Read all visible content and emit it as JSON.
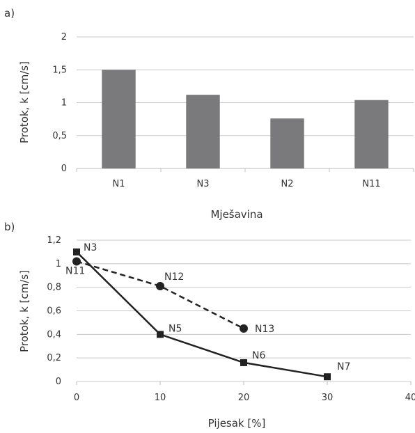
{
  "chart_data": [
    {
      "panel": "a)",
      "type": "bar",
      "title": "",
      "xlabel": "Mješavina",
      "ylabel": "Protok, k [cm/s]",
      "categories": [
        "N1",
        "N3",
        "N2",
        "N11"
      ],
      "values": [
        1.5,
        1.12,
        0.76,
        1.04
      ],
      "ylim": [
        0,
        2
      ],
      "yticks": [
        0,
        0.5,
        1,
        1.5,
        2
      ],
      "ytick_labels": [
        "0",
        "0,5",
        "1",
        "1,5",
        "2"
      ],
      "grid": "horizontal",
      "bar_color": "#7a7a7c"
    },
    {
      "panel": "b)",
      "type": "line",
      "title": "",
      "xlabel": "Pijesak [%]",
      "ylabel": "Protok, k [cm/s]",
      "xlim": [
        0,
        40
      ],
      "ylim": [
        0,
        1.2
      ],
      "xticks": [
        0,
        10,
        20,
        30,
        40
      ],
      "xtick_labels": [
        "0",
        "10",
        "20",
        "30",
        "40"
      ],
      "yticks": [
        0,
        0.2,
        0.4,
        0.6,
        0.8,
        1,
        1.2
      ],
      "ytick_labels": [
        "0",
        "0,2",
        "0,4",
        "0,6",
        "0,8",
        "1",
        "1,2"
      ],
      "grid": "horizontal",
      "series": [
        {
          "style": "solid",
          "marker": "square",
          "color": "#222222",
          "points": [
            {
              "x": 0,
              "y": 1.1,
              "label": "N3"
            },
            {
              "x": 10,
              "y": 0.4,
              "label": "N5"
            },
            {
              "x": 20,
              "y": 0.16,
              "label": "N6"
            },
            {
              "x": 30,
              "y": 0.04,
              "label": "N7"
            }
          ]
        },
        {
          "style": "dashed",
          "marker": "circle",
          "color": "#222222",
          "points": [
            {
              "x": 0,
              "y": 1.02,
              "label": "N11"
            },
            {
              "x": 10,
              "y": 0.81,
              "label": "N12"
            },
            {
              "x": 20,
              "y": 0.45,
              "label": "N13"
            }
          ]
        }
      ]
    }
  ]
}
